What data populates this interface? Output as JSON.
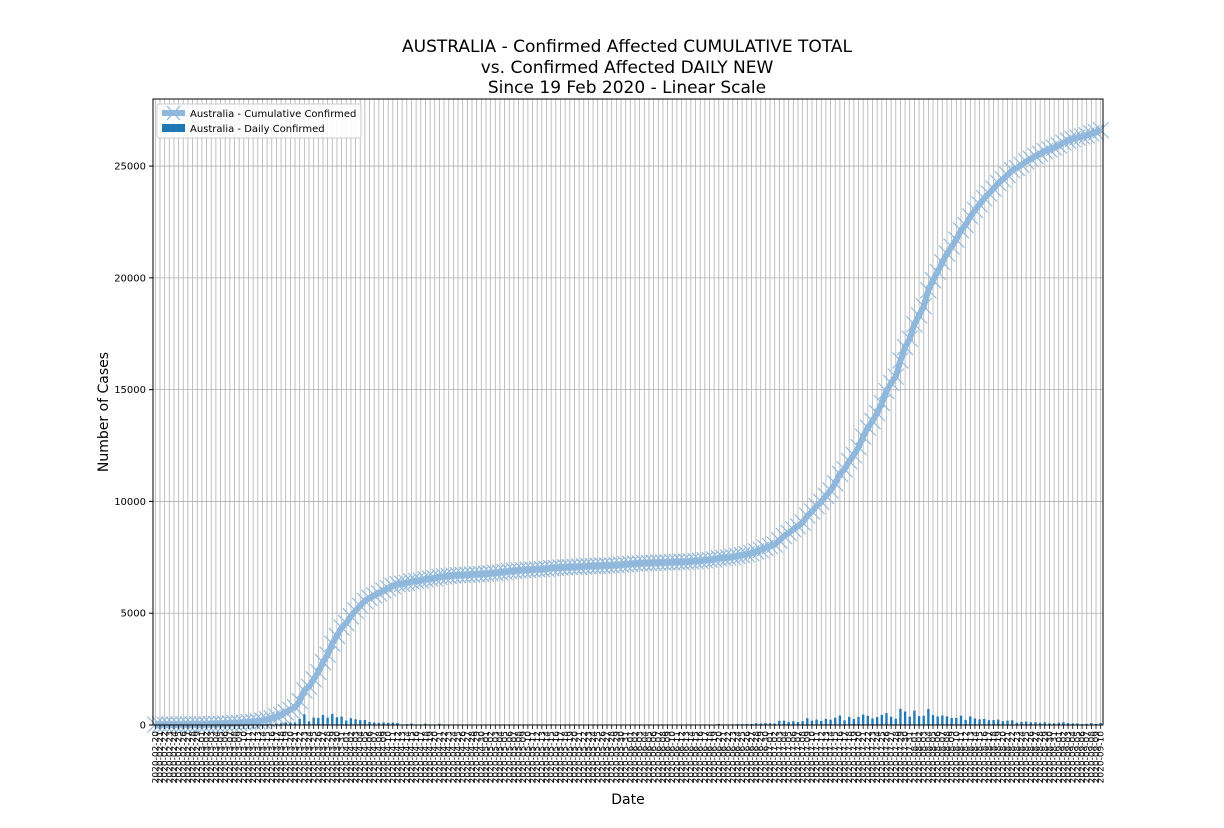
{
  "chart_data": {
    "type": "line",
    "title_lines": [
      "AUSTRALIA - Confirmed Affected CUMULATIVE TOTAL",
      "vs. Confirmed Affected DAILY NEW",
      "Since 19 Feb 2020 - Linear Scale"
    ],
    "xlabel": "Date",
    "ylabel": "Number of Cases",
    "ylim": [
      0,
      28000
    ],
    "yticks": [
      0,
      5000,
      10000,
      15000,
      20000,
      25000
    ],
    "grid": true,
    "legend_position": "top-left",
    "x_start_date": "2020-02-20",
    "x_end_date": "2020-09-10",
    "x": [
      "2020-02-20",
      "2020-02-21",
      "2020-02-22",
      "2020-02-23",
      "2020-02-24",
      "2020-02-25",
      "2020-02-26",
      "2020-02-27",
      "2020-02-28",
      "2020-02-29",
      "2020-03-01",
      "2020-03-02",
      "2020-03-03",
      "2020-03-04",
      "2020-03-05",
      "2020-03-06",
      "2020-03-07",
      "2020-03-08",
      "2020-03-09",
      "2020-03-10",
      "2020-03-11",
      "2020-03-12",
      "2020-03-13",
      "2020-03-14",
      "2020-03-15",
      "2020-03-16",
      "2020-03-17",
      "2020-03-18",
      "2020-03-19",
      "2020-03-20",
      "2020-03-21",
      "2020-03-22",
      "2020-03-23",
      "2020-03-24",
      "2020-03-25",
      "2020-03-26",
      "2020-03-27",
      "2020-03-28",
      "2020-03-29",
      "2020-03-30",
      "2020-03-31",
      "2020-04-01",
      "2020-04-02",
      "2020-04-03",
      "2020-04-04",
      "2020-04-05",
      "2020-04-06",
      "2020-04-07",
      "2020-04-08",
      "2020-04-09",
      "2020-04-10",
      "2020-04-11",
      "2020-04-12",
      "2020-04-13",
      "2020-04-14",
      "2020-04-15",
      "2020-04-16",
      "2020-04-17",
      "2020-04-18",
      "2020-04-19",
      "2020-04-20",
      "2020-04-21",
      "2020-04-22",
      "2020-04-23",
      "2020-04-24",
      "2020-04-25",
      "2020-04-26",
      "2020-04-27",
      "2020-04-28",
      "2020-04-29",
      "2020-04-30",
      "2020-05-01",
      "2020-05-02",
      "2020-05-03",
      "2020-05-04",
      "2020-05-05",
      "2020-05-06",
      "2020-05-07",
      "2020-05-08",
      "2020-05-09",
      "2020-05-10",
      "2020-05-11",
      "2020-05-12",
      "2020-05-13",
      "2020-05-14",
      "2020-05-15",
      "2020-05-16",
      "2020-05-17",
      "2020-05-18",
      "2020-05-19",
      "2020-05-20",
      "2020-05-21",
      "2020-05-22",
      "2020-05-23",
      "2020-05-24",
      "2020-05-25",
      "2020-05-26",
      "2020-05-27",
      "2020-05-28",
      "2020-05-29",
      "2020-05-30",
      "2020-05-31",
      "2020-06-01",
      "2020-06-02",
      "2020-06-03",
      "2020-06-04",
      "2020-06-05",
      "2020-06-06",
      "2020-06-07",
      "2020-06-08",
      "2020-06-09",
      "2020-06-10",
      "2020-06-11",
      "2020-06-12",
      "2020-06-13",
      "2020-06-14",
      "2020-06-15",
      "2020-06-16",
      "2020-06-17",
      "2020-06-18",
      "2020-06-19",
      "2020-06-20",
      "2020-06-21",
      "2020-06-22",
      "2020-06-23",
      "2020-06-24",
      "2020-06-25",
      "2020-06-26",
      "2020-06-27",
      "2020-06-28",
      "2020-06-29",
      "2020-06-30",
      "2020-07-01",
      "2020-07-02",
      "2020-07-03",
      "2020-07-04",
      "2020-07-05",
      "2020-07-06",
      "2020-07-07",
      "2020-07-08",
      "2020-07-09",
      "2020-07-10",
      "2020-07-11",
      "2020-07-12",
      "2020-07-13",
      "2020-07-14",
      "2020-07-15",
      "2020-07-16",
      "2020-07-17",
      "2020-07-18",
      "2020-07-19",
      "2020-07-20",
      "2020-07-21",
      "2020-07-22",
      "2020-07-23",
      "2020-07-24",
      "2020-07-25",
      "2020-07-26",
      "2020-07-27",
      "2020-07-28",
      "2020-07-29",
      "2020-07-30",
      "2020-07-31",
      "2020-08-01",
      "2020-08-02",
      "2020-08-03",
      "2020-08-04",
      "2020-08-05",
      "2020-08-06",
      "2020-08-07",
      "2020-08-08",
      "2020-08-09",
      "2020-08-10",
      "2020-08-11",
      "2020-08-12",
      "2020-08-13",
      "2020-08-14",
      "2020-08-15",
      "2020-08-16",
      "2020-08-17",
      "2020-08-18",
      "2020-08-19",
      "2020-08-20",
      "2020-08-21",
      "2020-08-22",
      "2020-08-23",
      "2020-08-24",
      "2020-08-25",
      "2020-08-26",
      "2020-08-27",
      "2020-08-28",
      "2020-08-29",
      "2020-08-30",
      "2020-08-31",
      "2020-09-01",
      "2020-09-02",
      "2020-09-03",
      "2020-09-04",
      "2020-09-05",
      "2020-09-06",
      "2020-09-07",
      "2020-09-08",
      "2020-09-09",
      "2020-09-10"
    ],
    "series": [
      {
        "name": "Australia - Cumulative Confirmed",
        "kind": "line",
        "color": "#8fb8dc",
        "marker": "x",
        "values": [
          15,
          15,
          15,
          15,
          15,
          22,
          23,
          23,
          25,
          26,
          29,
          33,
          41,
          52,
          57,
          63,
          74,
          80,
          91,
          107,
          128,
          140,
          156,
          199,
          250,
          297,
          377,
          452,
          568,
          681,
          791,
          1071,
          1549,
          1709,
          2044,
          2364,
          2810,
          3143,
          3640,
          3984,
          4361,
          4559,
          4862,
          5116,
          5330,
          5550,
          5687,
          5797,
          5895,
          6010,
          6108,
          6215,
          6303,
          6315,
          6351,
          6416,
          6440,
          6462,
          6522,
          6547,
          6565,
          6625,
          6649,
          6667,
          6687,
          6703,
          6714,
          6720,
          6731,
          6746,
          6753,
          6765,
          6783,
          6801,
          6825,
          6849,
          6875,
          6896,
          6914,
          6929,
          6941,
          6948,
          6964,
          6975,
          6989,
          7019,
          7035,
          7044,
          7054,
          7068,
          7072,
          7081,
          7095,
          7106,
          7109,
          7114,
          7126,
          7133,
          7139,
          7150,
          7173,
          7185,
          7204,
          7221,
          7229,
          7240,
          7247,
          7255,
          7265,
          7267,
          7274,
          7285,
          7289,
          7294,
          7302,
          7320,
          7335,
          7347,
          7370,
          7391,
          7409,
          7461,
          7474,
          7492,
          7521,
          7558,
          7595,
          7641,
          7686,
          7767,
          7834,
          7920,
          8001,
          8066,
          8255,
          8449,
          8586,
          8755,
          8886,
          9059,
          9359,
          9553,
          9797,
          9980,
          10251,
          10487,
          10810,
          11233,
          11441,
          11802,
          12069,
          12428,
          12894,
          13302,
          13595,
          13950,
          14403,
          14935,
          15303,
          15582,
          16303,
          16905,
          17280,
          17923,
          18318,
          18730,
          19445,
          19890,
          20272,
          20698,
          21084,
          21397,
          21713,
          22127,
          22358,
          22743,
          23035,
          23287,
          23559,
          23773,
          23993,
          24236,
          24407,
          24602,
          24812,
          24916,
          25053,
          25204,
          25322,
          25448,
          25547,
          25670,
          25746,
          25819,
          25923,
          26049,
          26136,
          26207,
          26279,
          26322,
          26374,
          26464,
          26513,
          26607
        ]
      },
      {
        "name": "Australia - Daily Confirmed",
        "kind": "bar",
        "color": "#1f77b4",
        "values": [
          0,
          0,
          0,
          0,
          0,
          7,
          1,
          0,
          2,
          1,
          3,
          4,
          8,
          11,
          5,
          6,
          11,
          6,
          11,
          16,
          21,
          12,
          16,
          43,
          51,
          47,
          80,
          75,
          116,
          113,
          110,
          280,
          478,
          160,
          335,
          320,
          446,
          333,
          497,
          344,
          377,
          198,
          303,
          254,
          214,
          220,
          137,
          110,
          98,
          115,
          98,
          107,
          88,
          12,
          36,
          65,
          24,
          22,
          60,
          25,
          18,
          60,
          24,
          18,
          20,
          16,
          11,
          6,
          11,
          15,
          7,
          12,
          18,
          18,
          24,
          24,
          26,
          21,
          18,
          15,
          12,
          7,
          16,
          11,
          14,
          30,
          16,
          9,
          10,
          14,
          4,
          9,
          14,
          11,
          3,
          5,
          12,
          7,
          6,
          11,
          23,
          12,
          19,
          17,
          8,
          11,
          7,
          8,
          10,
          2,
          7,
          11,
          4,
          5,
          8,
          18,
          15,
          12,
          23,
          21,
          18,
          52,
          13,
          18,
          29,
          37,
          37,
          46,
          45,
          81,
          67,
          86,
          81,
          65,
          189,
          194,
          137,
          169,
          131,
          173,
          300,
          194,
          244,
          183,
          271,
          236,
          323,
          423,
          208,
          361,
          267,
          359,
          466,
          408,
          293,
          355,
          453,
          532,
          368,
          279,
          721,
          602,
          375,
          643,
          395,
          412,
          715,
          445,
          382,
          426,
          386,
          313,
          316,
          414,
          231,
          385,
          292,
          252,
          272,
          214,
          220,
          243,
          171,
          195,
          210,
          104,
          137,
          151,
          118,
          126,
          99,
          123,
          76,
          73,
          104,
          126,
          87,
          71,
          72,
          43,
          52,
          90,
          49,
          94
        ]
      }
    ]
  }
}
